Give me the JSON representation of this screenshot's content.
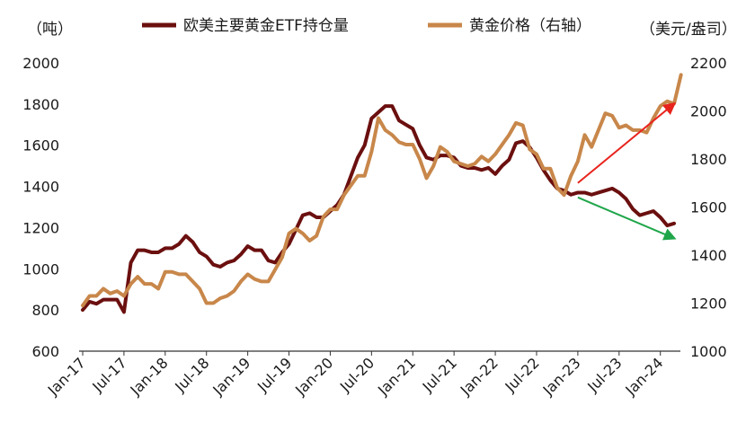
{
  "chart_data": {
    "type": "line",
    "title": "",
    "left_axis": {
      "unit": "（吨）",
      "ylim": [
        600,
        2000
      ],
      "ticks": [
        600,
        800,
        1000,
        1200,
        1400,
        1600,
        1800,
        2000
      ]
    },
    "right_axis": {
      "unit": "（美元/盎司）",
      "ylim": [
        1000,
        2200
      ],
      "ticks": [
        1000,
        1200,
        1400,
        1600,
        1800,
        2000,
        2200
      ]
    },
    "x_axis": {
      "start": "Jan-17",
      "tick_labels": [
        "Jan-17",
        "Jul-17",
        "Jan-18",
        "Jul-18",
        "Jan-19",
        "Jul-19",
        "Jan-20",
        "Jul-20",
        "Jan-21",
        "Jul-21",
        "Jan-22",
        "Jul-22",
        "Jan-23",
        "Jul-23",
        "Jan-24"
      ]
    },
    "legend": {
      "placement": "top"
    },
    "grid": false,
    "series": [
      {
        "name": "欧美主要黄金ETF持仓量",
        "axis": "left",
        "color": "#6b0f0f",
        "values": [
          800,
          840,
          830,
          850,
          850,
          850,
          790,
          1030,
          1090,
          1090,
          1080,
          1080,
          1100,
          1100,
          1120,
          1160,
          1130,
          1080,
          1060,
          1020,
          1010,
          1030,
          1040,
          1070,
          1110,
          1090,
          1090,
          1040,
          1030,
          1080,
          1120,
          1190,
          1260,
          1270,
          1250,
          1250,
          1280,
          1310,
          1360,
          1450,
          1540,
          1600,
          1730,
          1760,
          1790,
          1790,
          1720,
          1700,
          1680,
          1600,
          1540,
          1530,
          1550,
          1550,
          1540,
          1500,
          1490,
          1490,
          1480,
          1490,
          1460,
          1500,
          1530,
          1610,
          1620,
          1590,
          1540,
          1480,
          1430,
          1390,
          1380,
          1360,
          1370,
          1370,
          1360,
          1370,
          1380,
          1390,
          1370,
          1340,
          1290,
          1260,
          1270,
          1280,
          1250,
          1210,
          1220
        ]
      },
      {
        "name": "黄金价格（右轴）",
        "axis": "right",
        "color": "#c8874a",
        "values": [
          1190,
          1230,
          1230,
          1260,
          1240,
          1250,
          1230,
          1280,
          1310,
          1280,
          1280,
          1260,
          1330,
          1330,
          1320,
          1320,
          1290,
          1260,
          1200,
          1200,
          1220,
          1230,
          1250,
          1290,
          1320,
          1300,
          1290,
          1290,
          1340,
          1390,
          1490,
          1510,
          1490,
          1460,
          1480,
          1560,
          1590,
          1590,
          1650,
          1690,
          1730,
          1730,
          1830,
          1970,
          1920,
          1900,
          1870,
          1860,
          1860,
          1800,
          1720,
          1770,
          1850,
          1830,
          1790,
          1780,
          1770,
          1780,
          1810,
          1790,
          1820,
          1860,
          1900,
          1950,
          1940,
          1840,
          1820,
          1760,
          1760,
          1680,
          1650,
          1730,
          1790,
          1900,
          1850,
          1920,
          1990,
          1980,
          1930,
          1940,
          1920,
          1920,
          1910,
          1970,
          2020,
          2040,
          2030,
          2150
        ]
      }
    ],
    "trend_arrows": [
      {
        "color": "#e8231c",
        "from": [
          "Jan-23",
          1700
        ],
        "to": [
          "Jan-24",
          2030
        ],
        "axis": "right"
      },
      {
        "color": "#1fa64a",
        "from": [
          "Jan-23",
          1640
        ],
        "to": [
          "Jan-24",
          1470
        ],
        "axis": "right"
      }
    ]
  }
}
